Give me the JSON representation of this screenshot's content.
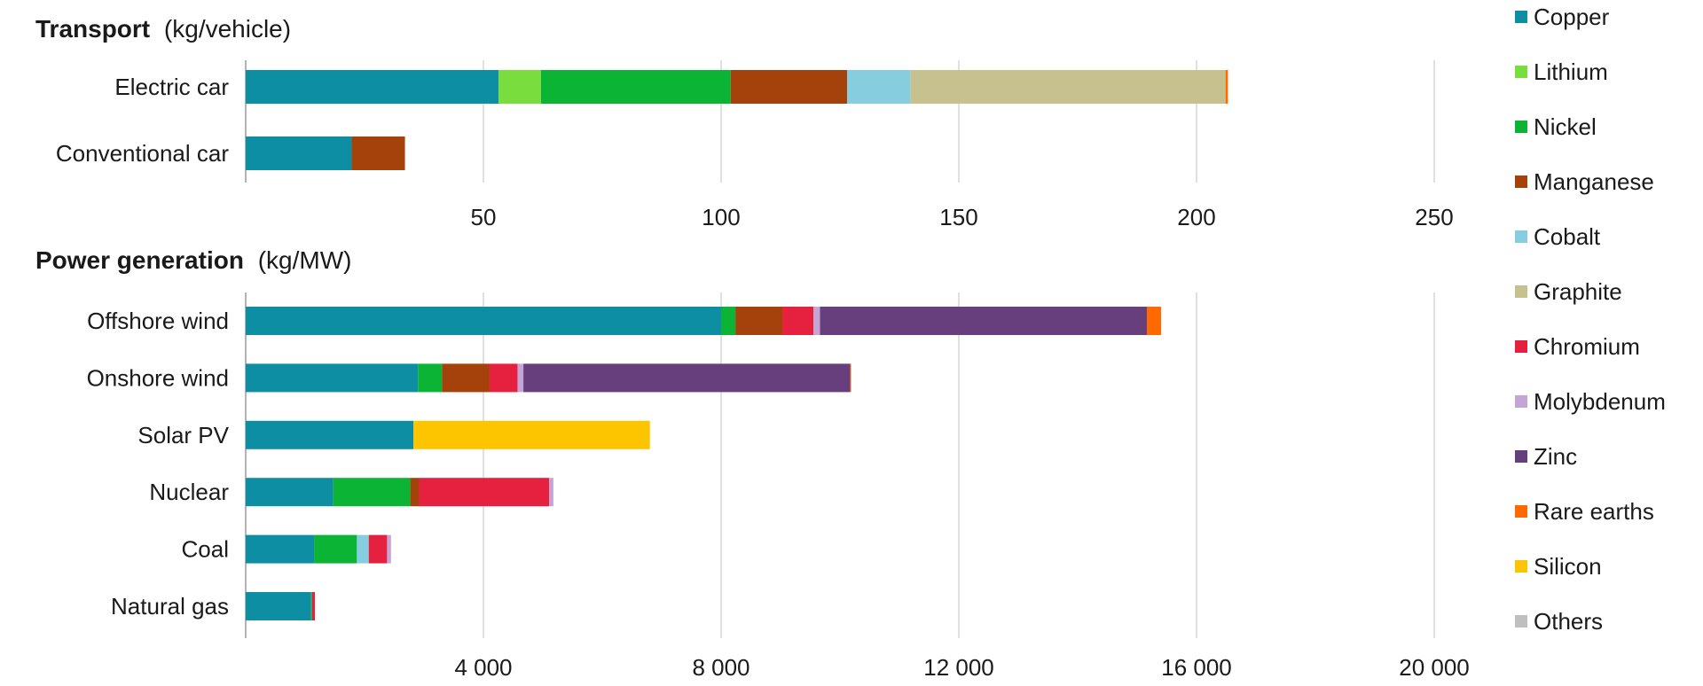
{
  "chart_data": [
    {
      "type": "bar",
      "orientation": "horizontal",
      "stacked": true,
      "title_bold": "Transport",
      "title_unit": "(kg/vehicle)",
      "categories": [
        "Electric car",
        "Conventional car"
      ],
      "xlim": [
        0,
        250
      ],
      "xticks": [
        50,
        100,
        150,
        200,
        250
      ],
      "xtick_labels": [
        "50",
        "100",
        "150",
        "200",
        "250"
      ],
      "grid": true,
      "series": [
        {
          "name": "Copper",
          "values": [
            53.2,
            22.3
          ]
        },
        {
          "name": "Lithium",
          "values": [
            8.9,
            0
          ]
        },
        {
          "name": "Nickel",
          "values": [
            39.9,
            0
          ]
        },
        {
          "name": "Manganese",
          "values": [
            24.5,
            11.2
          ]
        },
        {
          "name": "Cobalt",
          "values": [
            13.3,
            0
          ]
        },
        {
          "name": "Graphite",
          "values": [
            66.3,
            0
          ]
        },
        {
          "name": "Rare earths",
          "values": [
            0.5,
            0
          ]
        }
      ]
    },
    {
      "type": "bar",
      "orientation": "horizontal",
      "stacked": true,
      "title_bold": "Power generation",
      "title_unit": "(kg/MW)",
      "categories": [
        "Offshore wind",
        "Onshore wind",
        "Solar PV",
        "Nuclear",
        "Coal",
        "Natural gas"
      ],
      "xlim": [
        0,
        20000
      ],
      "xticks": [
        4000,
        8000,
        12000,
        16000,
        20000
      ],
      "xtick_labels": [
        "4 000",
        "8 000",
        "12 000",
        "16 000",
        "20 000"
      ],
      "grid": true,
      "series": [
        {
          "name": "Copper",
          "values": [
            8000,
            2900,
            2822,
            1473,
            1150,
            1100
          ]
        },
        {
          "name": "Nickel",
          "values": [
            240,
            404,
            0,
            1297,
            721,
            16
          ]
        },
        {
          "name": "Manganese",
          "values": [
            790,
            800,
            0,
            148,
            0,
            0
          ]
        },
        {
          "name": "Cobalt",
          "values": [
            0,
            0,
            0,
            0,
            200,
            0
          ]
        },
        {
          "name": "Chromium",
          "values": [
            525,
            470,
            0,
            2190,
            308,
            48
          ]
        },
        {
          "name": "Molybdenum",
          "values": [
            109,
            99,
            0,
            70,
            66,
            0
          ]
        },
        {
          "name": "Zinc",
          "values": [
            5500,
            5500,
            0,
            0,
            0,
            0
          ]
        },
        {
          "name": "Rare earths",
          "values": [
            239,
            14,
            0,
            0,
            0,
            0
          ]
        },
        {
          "name": "Silicon",
          "values": [
            0,
            0,
            3980,
            0,
            0,
            0
          ]
        },
        {
          "name": "Others",
          "values": [
            0,
            0,
            0,
            0,
            0,
            0
          ]
        }
      ]
    }
  ],
  "legend": {
    "placement": "right",
    "items": [
      {
        "name": "Copper",
        "color": "#0e8ea3"
      },
      {
        "name": "Lithium",
        "color": "#79dd3d"
      },
      {
        "name": "Nickel",
        "color": "#0bb435"
      },
      {
        "name": "Manganese",
        "color": "#a5410b"
      },
      {
        "name": "Cobalt",
        "color": "#86cde0"
      },
      {
        "name": "Graphite",
        "color": "#c7c18f"
      },
      {
        "name": "Chromium",
        "color": "#e5213f"
      },
      {
        "name": "Molybdenum",
        "color": "#c5a5d5"
      },
      {
        "name": "Zinc",
        "color": "#673f7d"
      },
      {
        "name": "Rare earths",
        "color": "#ff6a00"
      },
      {
        "name": "Silicon",
        "color": "#fdc500"
      },
      {
        "name": "Others",
        "color": "#bfbfbf"
      }
    ]
  }
}
